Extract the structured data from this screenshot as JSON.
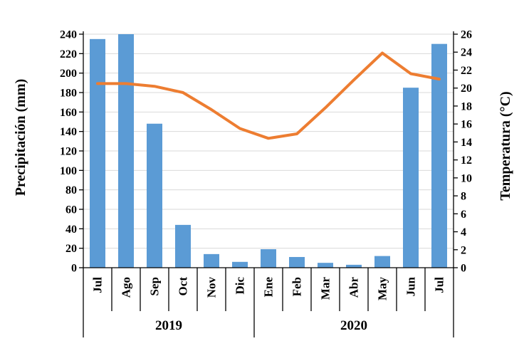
{
  "chart_data": {
    "type": "combo_bar_line",
    "title": "",
    "legend": "none",
    "categories": [
      "Jul",
      "Ago",
      "Sep",
      "Oct",
      "Nov",
      "Dic",
      "Ene",
      "Feb",
      "Mar",
      "Abr",
      "May",
      "Jun",
      "Jul"
    ],
    "category_groups": [
      {
        "label": "2019",
        "start": 0,
        "count": 6
      },
      {
        "label": "2020",
        "start": 6,
        "count": 7
      }
    ],
    "series": [
      {
        "name": "Precipitación",
        "type": "bar",
        "axis": "left",
        "color": "#5B9BD5",
        "values": [
          235,
          240,
          148,
          44,
          14,
          6,
          19,
          11,
          5,
          3,
          12,
          185,
          230
        ]
      },
      {
        "name": "Temperatura",
        "type": "line",
        "axis": "right",
        "color": "#ED7D31",
        "values": [
          20.5,
          20.5,
          20.2,
          19.5,
          17.6,
          15.5,
          14.4,
          14.9,
          17.8,
          20.9,
          23.9,
          21.6,
          21.0
        ]
      }
    ],
    "left_axis": {
      "title": "Precipitación (mm)",
      "min": 0,
      "max": 240,
      "step": 20,
      "tick_labels": [
        "0",
        "20",
        "40",
        "60",
        "80",
        "100",
        "120",
        "140",
        "160",
        "180",
        "200",
        "220",
        "240"
      ]
    },
    "right_axis": {
      "title": "Temperatura (°C)",
      "min": 0,
      "max": 26,
      "step": 2,
      "tick_labels": [
        "0",
        "2",
        "4",
        "6",
        "8",
        "10",
        "12",
        "14",
        "16",
        "18",
        "20",
        "22",
        "24",
        "26"
      ]
    },
    "grid": {
      "horizontal": true,
      "vertical": false,
      "color": "#D9D9D9"
    },
    "axis_color": "#000000",
    "background": "#FFFFFF"
  }
}
